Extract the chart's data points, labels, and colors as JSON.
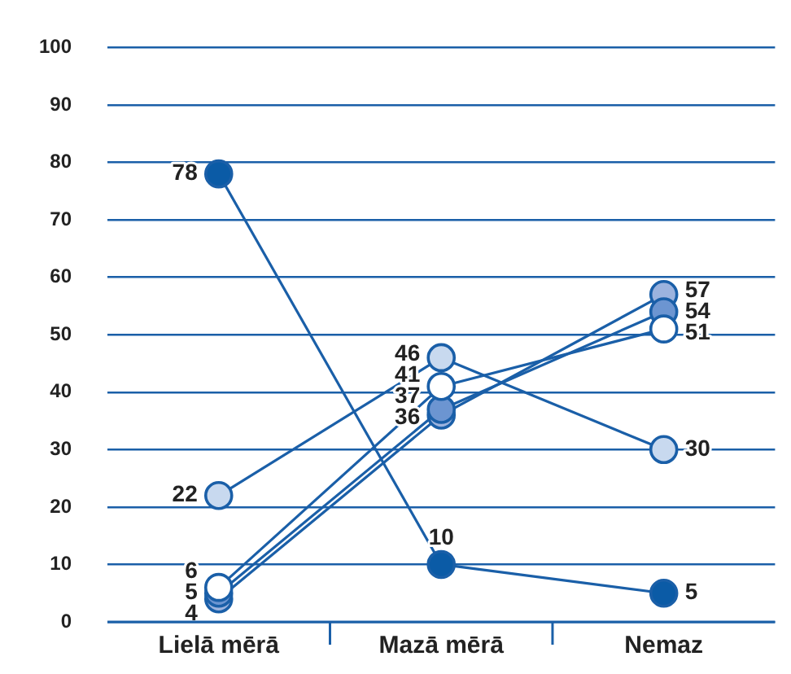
{
  "chart_data": {
    "type": "line",
    "categories": [
      "Lielā mērā",
      "Mazā mērā",
      "Nemaz"
    ],
    "series": [
      {
        "color": "#0b5ba6",
        "values": [
          78,
          10,
          5
        ]
      },
      {
        "color": "#c8d9ef",
        "values": [
          22,
          46,
          30
        ]
      },
      {
        "color": "#ffffff",
        "values": [
          6,
          41,
          51
        ]
      },
      {
        "color": "#6c95d1",
        "values": [
          5,
          37,
          54
        ]
      },
      {
        "color": "#9cb3de",
        "values": [
          4,
          36,
          57
        ]
      }
    ],
    "ylim": [
      0,
      100
    ],
    "yticks": [
      0,
      10,
      20,
      30,
      40,
      50,
      60,
      70,
      80,
      90,
      100
    ],
    "grid": "y",
    "legend": false,
    "marker": "circle",
    "line_style": "solid",
    "data_labels": true
  }
}
